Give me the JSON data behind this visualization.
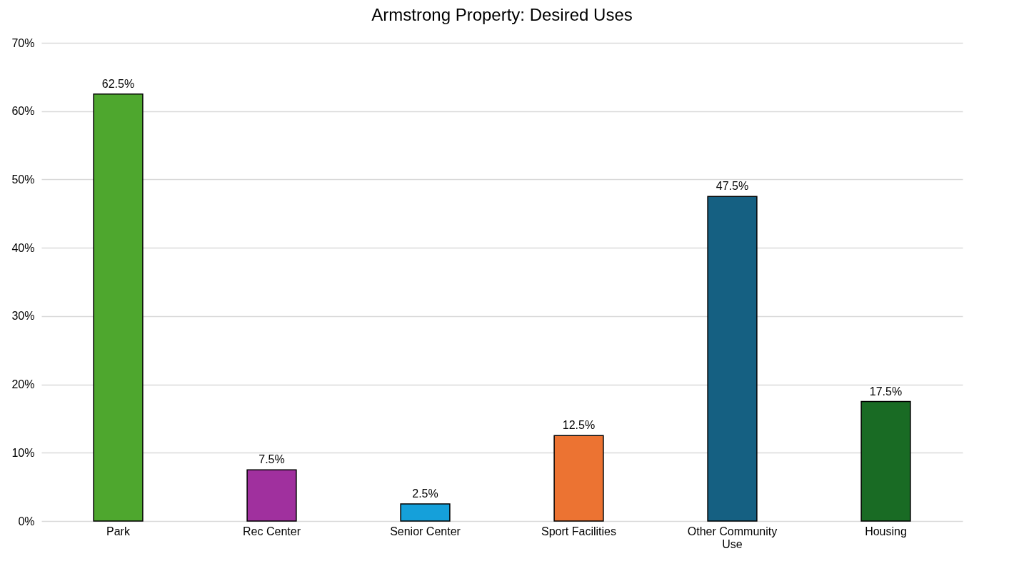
{
  "chart_data": {
    "type": "bar",
    "title": "Armstrong Property: Desired Uses",
    "categories": [
      "Park",
      "Rec Center",
      "Senior Center",
      "Sport Facilities",
      "Other Community Use",
      "Housing"
    ],
    "values": [
      62.5,
      7.5,
      2.5,
      12.5,
      47.5,
      17.5
    ],
    "colors": [
      "#4ea72e",
      "#a0309e",
      "#15a0da",
      "#ec7332",
      "#156082",
      "#196b24"
    ],
    "value_labels": [
      "62.5%",
      "7.5%",
      "2.5%",
      "12.5%",
      "47.5%",
      "17.5%"
    ],
    "ylim": [
      0,
      70
    ],
    "yticks": [
      {
        "value": 0,
        "label": "0%"
      },
      {
        "value": 10,
        "label": "10%"
      },
      {
        "value": 20,
        "label": "20%"
      },
      {
        "value": 30,
        "label": "30%"
      },
      {
        "value": 40,
        "label": "40%"
      },
      {
        "value": 50,
        "label": "50%"
      },
      {
        "value": 60,
        "label": "60%"
      },
      {
        "value": 70,
        "label": "70%"
      }
    ],
    "grid": "y"
  }
}
